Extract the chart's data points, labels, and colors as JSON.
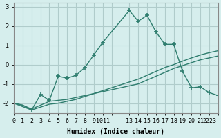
{
  "xlabel": "Humidex (Indice chaleur)",
  "ylabel": "",
  "bg_color": "#d6eeed",
  "grid_color": "#b0cccb",
  "line_color": "#2e7d6e",
  "xlim": [
    0,
    23
  ],
  "ylim": [
    -2.5,
    3.2
  ],
  "xtick_positions": [
    0,
    1,
    2,
    3,
    4,
    5,
    6,
    7,
    8,
    9,
    10,
    11,
    13,
    14,
    15,
    16,
    17,
    18,
    19,
    20,
    21,
    22,
    23
  ],
  "xtick_labels": [
    "0",
    "1",
    "2",
    "3",
    "4",
    "5",
    "6",
    "7",
    "8",
    "9",
    "1011",
    "",
    "13",
    "14",
    "15",
    "16",
    "17",
    "18",
    "19",
    "20",
    "21",
    "2223",
    ""
  ],
  "ytick_positions": [
    -2,
    -1,
    0,
    1,
    2,
    3
  ],
  "ytick_labels": [
    "-2",
    "-1",
    "0",
    "1",
    "2",
    "3"
  ],
  "lines": [
    {
      "x": [
        0,
        1,
        2,
        3,
        4,
        5,
        6,
        7,
        8,
        9,
        10,
        13,
        14,
        15,
        16,
        17,
        18,
        19,
        20,
        21,
        22,
        23
      ],
      "y": [
        -2.0,
        -2.1,
        -2.3,
        -2.1,
        -1.9,
        -1.85,
        -1.8,
        -1.7,
        -1.6,
        -1.5,
        -1.4,
        -1.1,
        -1.0,
        -0.8,
        -0.6,
        -0.4,
        -0.2,
        -0.05,
        0.1,
        0.25,
        0.35,
        0.45
      ],
      "marker": null
    },
    {
      "x": [
        0,
        1,
        2,
        3,
        4,
        5,
        6,
        7,
        8,
        9,
        10,
        13,
        14,
        15,
        16,
        17,
        18,
        19,
        20,
        21,
        22,
        23
      ],
      "y": [
        -2.0,
        -2.1,
        -2.35,
        -2.2,
        -2.05,
        -2.0,
        -1.9,
        -1.8,
        -1.65,
        -1.5,
        -1.35,
        -0.9,
        -0.75,
        -0.55,
        -0.35,
        -0.15,
        0.0,
        0.18,
        0.35,
        0.5,
        0.62,
        0.72
      ],
      "marker": null
    },
    {
      "x": [
        0,
        2,
        3,
        4,
        5,
        6,
        7,
        8,
        9,
        10,
        13,
        14,
        15,
        16,
        17,
        18,
        19,
        20,
        21,
        22,
        23
      ],
      "y": [
        -2.0,
        -2.35,
        -1.55,
        -1.85,
        -0.6,
        -0.7,
        -0.55,
        -0.15,
        0.5,
        1.15,
        2.8,
        2.25,
        2.55,
        1.7,
        1.05,
        1.05,
        -0.35,
        -1.2,
        -1.15,
        -1.45,
        -1.6
      ],
      "marker": "+"
    }
  ]
}
